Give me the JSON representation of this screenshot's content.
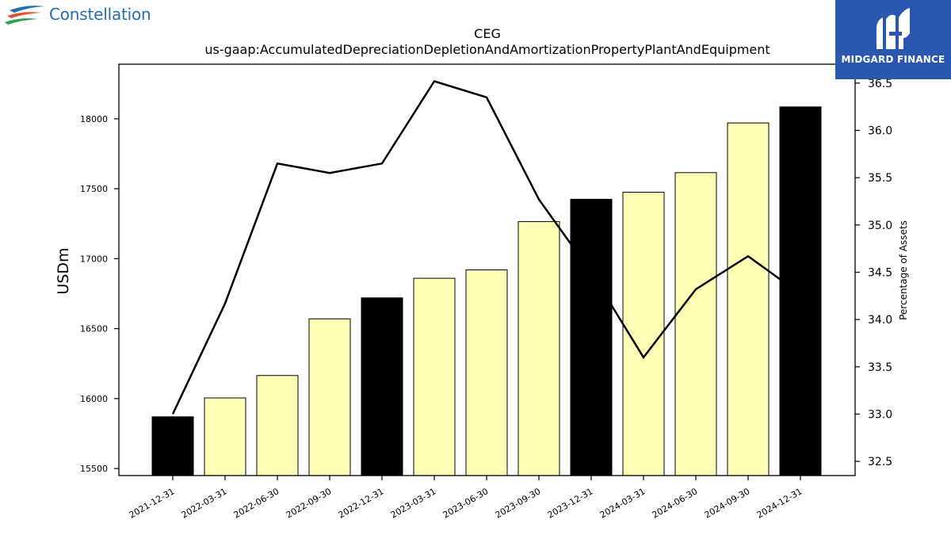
{
  "brand": {
    "name": "Constellation",
    "colors": [
      "#1f6fb5",
      "#e8522b",
      "#2d9e4f"
    ]
  },
  "watermark": {
    "name": "MIDGARD FINANCE",
    "bg": "#2a58b0"
  },
  "chart_data": {
    "type": "bar",
    "title": "CEG",
    "subtitle": "us-gaap:AccumulatedDepreciationDepletionAndAmortizationPropertyPlantAndEquipment",
    "ylabel": "USDm",
    "y2label": "Percentage of Assets",
    "categories": [
      "2021-12-31",
      "2022-03-31",
      "2022-06-30",
      "2022-09-30",
      "2022-12-31",
      "2023-03-31",
      "2023-06-30",
      "2023-09-30",
      "2023-12-31",
      "2024-03-31",
      "2024-06-30",
      "2024-09-30",
      "2024-12-31"
    ],
    "series": [
      {
        "type": "bar",
        "values": [
          15870,
          16005,
          16165,
          16570,
          16720,
          16860,
          16920,
          17265,
          17425,
          17475,
          17615,
          17970,
          18085
        ]
      },
      {
        "type": "line",
        "axis": "right",
        "values": [
          33.0,
          34.17,
          35.65,
          35.55,
          35.65,
          36.52,
          36.35,
          35.27,
          34.5,
          33.6,
          34.32,
          34.67,
          34.27
        ]
      }
    ],
    "bar_colors": [
      "#000000",
      "#ffffb5",
      "#ffffb5",
      "#ffffb5",
      "#000000",
      "#ffffb5",
      "#ffffb5",
      "#ffffb5",
      "#000000",
      "#ffffb5",
      "#ffffb5",
      "#ffffb5",
      "#000000"
    ],
    "ylim": [
      15450,
      18390
    ],
    "y2lim": [
      32.35,
      36.7
    ],
    "yticks": [
      15500,
      16000,
      16500,
      17000,
      17500,
      18000
    ],
    "y2ticks": [
      "32.5",
      "33.0",
      "33.5",
      "34.0",
      "34.5",
      "35.0",
      "35.5",
      "36.0",
      "36.5"
    ],
    "grid": false
  }
}
